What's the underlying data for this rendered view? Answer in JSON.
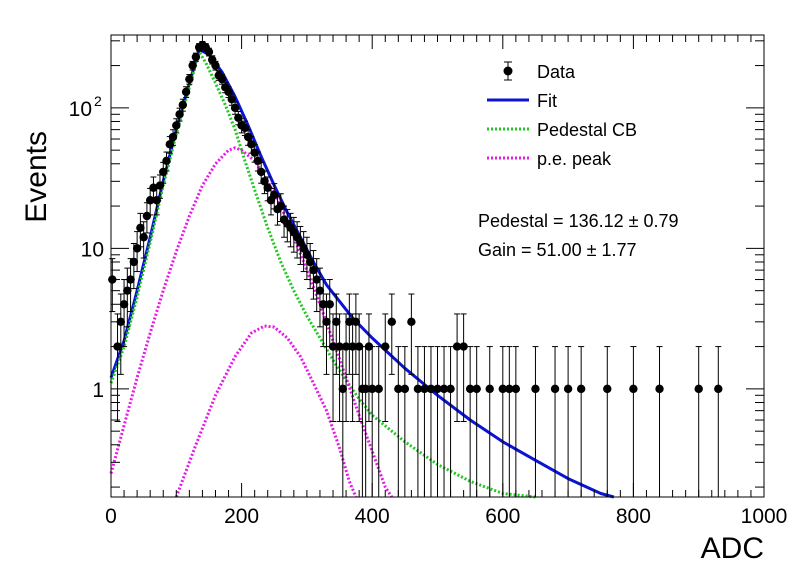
{
  "chart_data": {
    "type": "scatter",
    "xlabel": "ADC",
    "ylabel": "Events",
    "xlim": [
      0,
      1000
    ],
    "ylim": [
      0.17,
      330
    ],
    "y_scale": "log",
    "grid": false,
    "legend_position": "top-right",
    "x_ticks": [
      "0",
      "200",
      "400",
      "600",
      "800",
      "1000"
    ],
    "y_ticks": [
      {
        "value": 1,
        "label": "1"
      },
      {
        "value": 10,
        "label": "10"
      },
      {
        "value": 100,
        "label": "10",
        "sup": "2"
      }
    ],
    "legend": [
      {
        "label": "Data",
        "marker": "point",
        "color": "#000000"
      },
      {
        "label": "Fit",
        "marker": "line",
        "color": "#0a14d2"
      },
      {
        "label": "Pedestal CB",
        "marker": "dotted",
        "color": "#1ec81e"
      },
      {
        "label": "p.e. peak",
        "marker": "dotted",
        "color": "#e619e6"
      }
    ],
    "stats": [
      {
        "text": "Pedestal = 136.12",
        "err": "0.79"
      },
      {
        "text": "Gain = 51.00",
        "err": "1.77"
      }
    ],
    "series": [
      {
        "name": "Data",
        "color": "#000000",
        "points": [
          [
            2,
            6
          ],
          [
            10,
            2
          ],
          [
            15,
            3
          ],
          [
            20,
            4
          ],
          [
            25,
            5
          ],
          [
            30,
            6
          ],
          [
            35,
            8
          ],
          [
            40,
            10
          ],
          [
            45,
            14
          ],
          [
            50,
            12
          ],
          [
            55,
            17
          ],
          [
            60,
            22
          ],
          [
            65,
            27
          ],
          [
            70,
            22
          ],
          [
            75,
            28
          ],
          [
            80,
            35
          ],
          [
            85,
            42
          ],
          [
            90,
            55
          ],
          [
            95,
            62
          ],
          [
            100,
            75
          ],
          [
            105,
            90
          ],
          [
            110,
            105
          ],
          [
            115,
            130
          ],
          [
            120,
            160
          ],
          [
            125,
            200
          ],
          [
            130,
            230
          ],
          [
            135,
            270
          ],
          [
            140,
            280
          ],
          [
            145,
            270
          ],
          [
            150,
            250
          ],
          [
            155,
            220
          ],
          [
            160,
            200
          ],
          [
            165,
            170
          ],
          [
            170,
            160
          ],
          [
            175,
            140
          ],
          [
            180,
            130
          ],
          [
            185,
            115
          ],
          [
            190,
            100
          ],
          [
            195,
            85
          ],
          [
            200,
            75
          ],
          [
            205,
            72
          ],
          [
            210,
            62
          ],
          [
            215,
            55
          ],
          [
            220,
            48
          ],
          [
            225,
            42
          ],
          [
            230,
            35
          ],
          [
            235,
            30
          ],
          [
            240,
            27
          ],
          [
            245,
            22
          ],
          [
            250,
            24
          ],
          [
            255,
            19
          ],
          [
            260,
            20
          ],
          [
            265,
            16
          ],
          [
            270,
            15
          ],
          [
            275,
            14
          ],
          [
            280,
            13
          ],
          [
            285,
            12
          ],
          [
            290,
            11
          ],
          [
            295,
            10
          ],
          [
            300,
            9
          ],
          [
            305,
            8
          ],
          [
            310,
            7
          ],
          [
            315,
            6
          ],
          [
            320,
            5
          ],
          [
            325,
            4
          ],
          [
            330,
            3
          ],
          [
            335,
            4
          ],
          [
            340,
            2
          ],
          [
            345,
            3
          ],
          [
            350,
            2
          ],
          [
            355,
            1
          ],
          [
            360,
            2
          ],
          [
            365,
            3
          ],
          [
            370,
            2
          ],
          [
            375,
            3
          ],
          [
            380,
            2
          ],
          [
            385,
            1
          ],
          [
            390,
            1
          ],
          [
            395,
            2
          ],
          [
            400,
            1
          ],
          [
            410,
            1
          ],
          [
            420,
            2
          ],
          [
            430,
            3
          ],
          [
            440,
            1
          ],
          [
            450,
            1
          ],
          [
            460,
            3
          ],
          [
            470,
            1
          ],
          [
            480,
            1
          ],
          [
            490,
            1
          ],
          [
            500,
            1
          ],
          [
            510,
            1
          ],
          [
            520,
            1
          ],
          [
            530,
            2
          ],
          [
            540,
            2
          ],
          [
            550,
            1
          ],
          [
            560,
            1
          ],
          [
            580,
            1
          ],
          [
            600,
            1
          ],
          [
            610,
            1
          ],
          [
            620,
            1
          ],
          [
            650,
            1
          ],
          [
            680,
            1
          ],
          [
            700,
            1
          ],
          [
            720,
            1
          ],
          [
            760,
            1
          ],
          [
            800,
            1
          ],
          [
            840,
            1
          ],
          [
            900,
            1
          ],
          [
            930,
            1
          ]
        ]
      },
      {
        "name": "Fit",
        "color": "#0a14d2",
        "points": [
          [
            0,
            1.2
          ],
          [
            20,
            2.2
          ],
          [
            40,
            5
          ],
          [
            60,
            12
          ],
          [
            80,
            30
          ],
          [
            100,
            70
          ],
          [
            120,
            150
          ],
          [
            135,
            260
          ],
          [
            150,
            240
          ],
          [
            170,
            180
          ],
          [
            190,
            120
          ],
          [
            210,
            75
          ],
          [
            230,
            45
          ],
          [
            250,
            28
          ],
          [
            270,
            18
          ],
          [
            290,
            12
          ],
          [
            310,
            8
          ],
          [
            330,
            5.5
          ],
          [
            350,
            4.2
          ],
          [
            370,
            3.2
          ],
          [
            400,
            2.3
          ],
          [
            450,
            1.4
          ],
          [
            500,
            0.9
          ],
          [
            550,
            0.6
          ],
          [
            600,
            0.42
          ],
          [
            650,
            0.31
          ],
          [
            700,
            0.23
          ],
          [
            750,
            0.18
          ],
          [
            770,
            0.17
          ]
        ]
      },
      {
        "name": "Pedestal CB",
        "color": "#1ec81e",
        "points": [
          [
            0,
            1.1
          ],
          [
            20,
            2
          ],
          [
            40,
            4.5
          ],
          [
            60,
            11
          ],
          [
            80,
            28
          ],
          [
            100,
            65
          ],
          [
            120,
            140
          ],
          [
            135,
            250
          ],
          [
            145,
            210
          ],
          [
            160,
            150
          ],
          [
            175,
            105
          ],
          [
            190,
            70
          ],
          [
            205,
            42
          ],
          [
            220,
            26
          ],
          [
            240,
            14
          ],
          [
            260,
            8
          ],
          [
            280,
            5
          ],
          [
            300,
            3.3
          ],
          [
            320,
            2.3
          ],
          [
            340,
            1.6
          ],
          [
            360,
            1.15
          ],
          [
            380,
            0.85
          ],
          [
            400,
            0.65
          ],
          [
            450,
            0.42
          ],
          [
            500,
            0.29
          ],
          [
            550,
            0.22
          ],
          [
            600,
            0.18
          ],
          [
            650,
            0.16
          ]
        ]
      },
      {
        "name": "p.e. peak (1)",
        "color": "#e619e6",
        "points": [
          [
            0,
            0.25
          ],
          [
            20,
            0.55
          ],
          [
            40,
            1.2
          ],
          [
            60,
            2.5
          ],
          [
            80,
            5
          ],
          [
            100,
            9.5
          ],
          [
            120,
            17
          ],
          [
            140,
            28
          ],
          [
            160,
            40
          ],
          [
            180,
            50
          ],
          [
            190,
            52
          ],
          [
            200,
            50
          ],
          [
            220,
            42
          ],
          [
            240,
            30
          ],
          [
            260,
            20
          ],
          [
            280,
            12
          ],
          [
            300,
            7
          ],
          [
            320,
            4
          ],
          [
            340,
            2.2
          ],
          [
            360,
            1.2
          ],
          [
            380,
            0.65
          ],
          [
            400,
            0.36
          ],
          [
            420,
            0.2
          ],
          [
            430,
            0.17
          ]
        ]
      },
      {
        "name": "p.e. peak (2)",
        "color": "#e619e6",
        "points": [
          [
            100,
            0.17
          ],
          [
            130,
            0.4
          ],
          [
            160,
            0.9
          ],
          [
            190,
            1.7
          ],
          [
            215,
            2.5
          ],
          [
            235,
            2.8
          ],
          [
            250,
            2.75
          ],
          [
            270,
            2.3
          ],
          [
            290,
            1.7
          ],
          [
            310,
            1.1
          ],
          [
            330,
            0.7
          ],
          [
            350,
            0.38
          ],
          [
            365,
            0.22
          ],
          [
            375,
            0.17
          ]
        ]
      }
    ]
  }
}
